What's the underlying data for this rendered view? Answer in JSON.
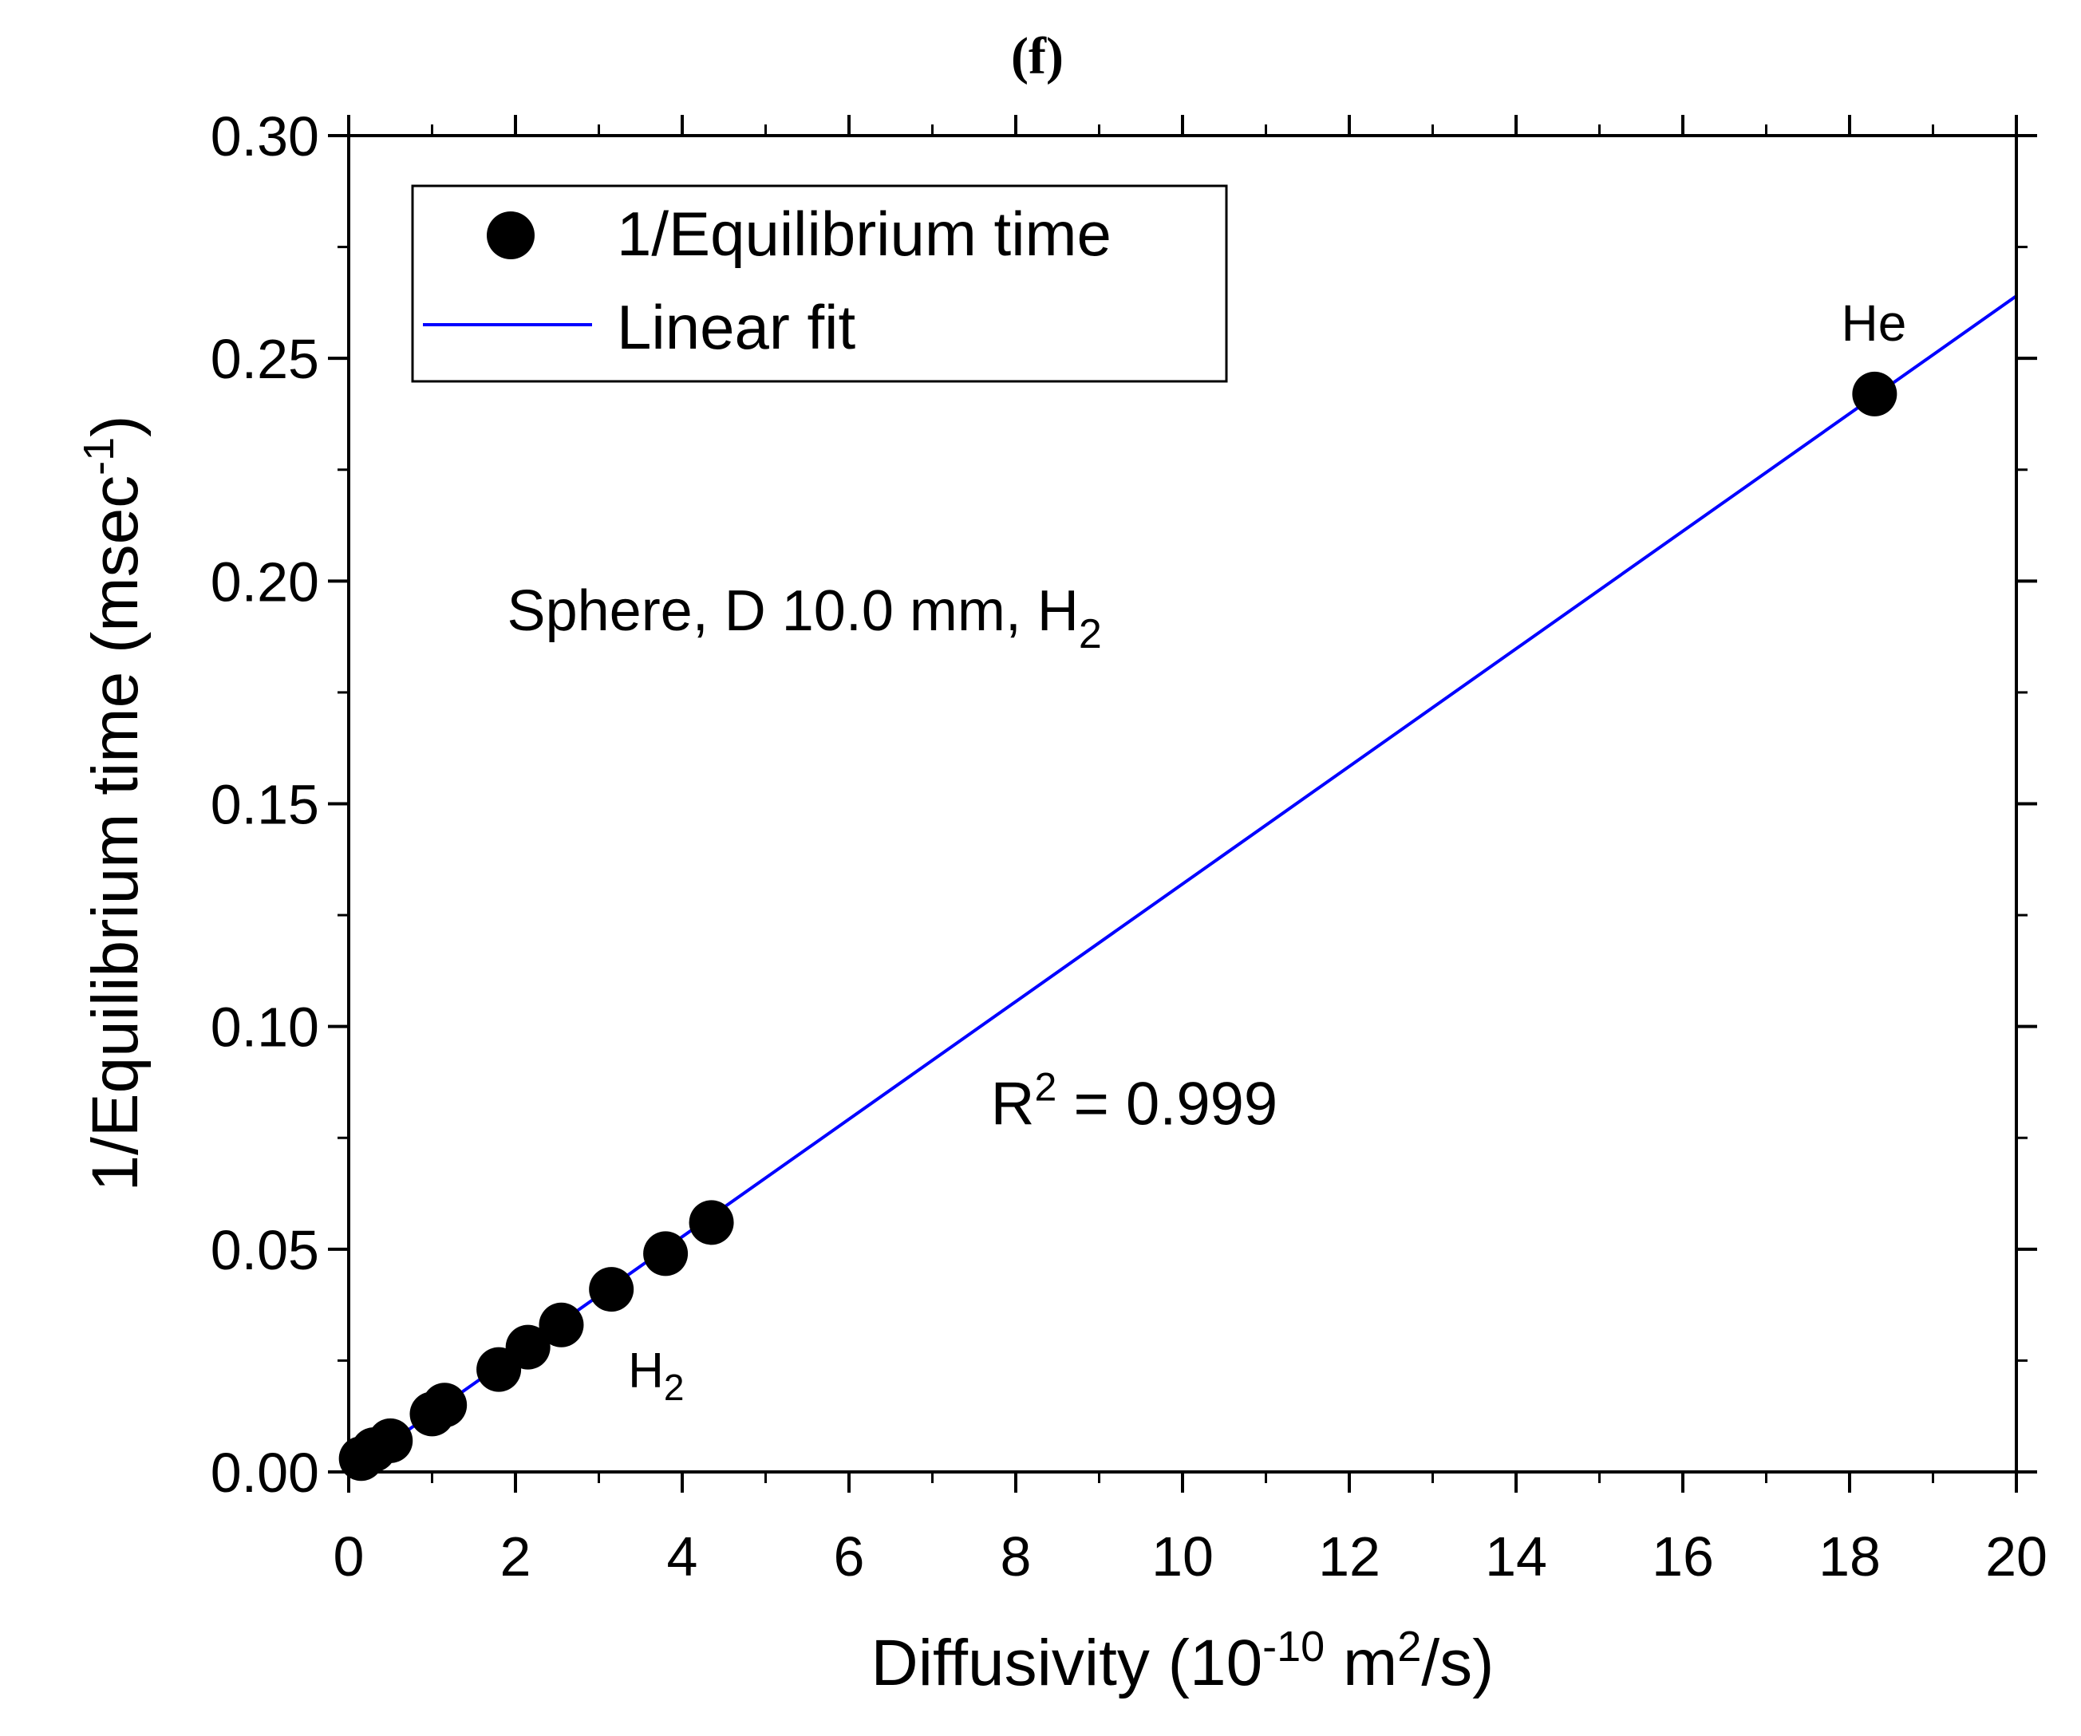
{
  "chart_data": {
    "type": "scatter",
    "panel_label": "(f)",
    "xlabel_main": "Diffusivity (10",
    "xlabel_exp": "-10",
    "xlabel_unit": " m",
    "xlabel_unit_exp": "2",
    "xlabel_end": "/s)",
    "ylabel_main": "1/Equilibrium time (msec",
    "ylabel_exp": "-1",
    "ylabel_end": ")",
    "xlim": [
      0,
      20
    ],
    "ylim": [
      0,
      0.3
    ],
    "xticks": [
      "0",
      "2",
      "4",
      "6",
      "8",
      "10",
      "12",
      "14",
      "16",
      "18",
      "20"
    ],
    "yticks": [
      "0.00",
      "0.05",
      "0.10",
      "0.15",
      "0.20",
      "0.25",
      "0.30"
    ],
    "x_tick_values": [
      0,
      2,
      4,
      6,
      8,
      10,
      12,
      14,
      16,
      18,
      20
    ],
    "y_tick_values": [
      0,
      0.05,
      0.1,
      0.15,
      0.2,
      0.25,
      0.3
    ],
    "series": [
      {
        "name": "1/Equilibrium time",
        "kind": "scatter",
        "color": "#000000",
        "points": [
          {
            "x": 0.15,
            "y": 0.003
          },
          {
            "x": 0.3,
            "y": 0.005
          },
          {
            "x": 0.5,
            "y": 0.007
          },
          {
            "x": 1.0,
            "y": 0.013
          },
          {
            "x": 1.15,
            "y": 0.015
          },
          {
            "x": 1.8,
            "y": 0.023
          },
          {
            "x": 2.15,
            "y": 0.028
          },
          {
            "x": 2.55,
            "y": 0.033
          },
          {
            "x": 3.15,
            "y": 0.041
          },
          {
            "x": 3.8,
            "y": 0.049
          },
          {
            "x": 4.35,
            "y": 0.056
          },
          {
            "x": 18.3,
            "y": 0.242
          }
        ]
      },
      {
        "name": "Linear fit",
        "kind": "line",
        "color": "#0000ff",
        "x": [
          0,
          20
        ],
        "y": [
          0,
          0.264
        ]
      }
    ],
    "legend": [
      "1/Equilibrium time",
      "Linear fit"
    ],
    "legend_position": "top-left",
    "annotations": {
      "he": {
        "text": "He",
        "x": 17.9,
        "y": 0.254
      },
      "h2_point": {
        "text": "H",
        "sub": "2",
        "x": 3.35,
        "y": 0.019
      },
      "condition": {
        "text": "Sphere, D 10.0 mm, H",
        "sub": "2",
        "x": 1.9,
        "y": 0.189
      },
      "r2": {
        "text_pre": "R",
        "sup": "2",
        "text_post": " = 0.999",
        "x": 7.7,
        "y": 0.078
      }
    }
  }
}
